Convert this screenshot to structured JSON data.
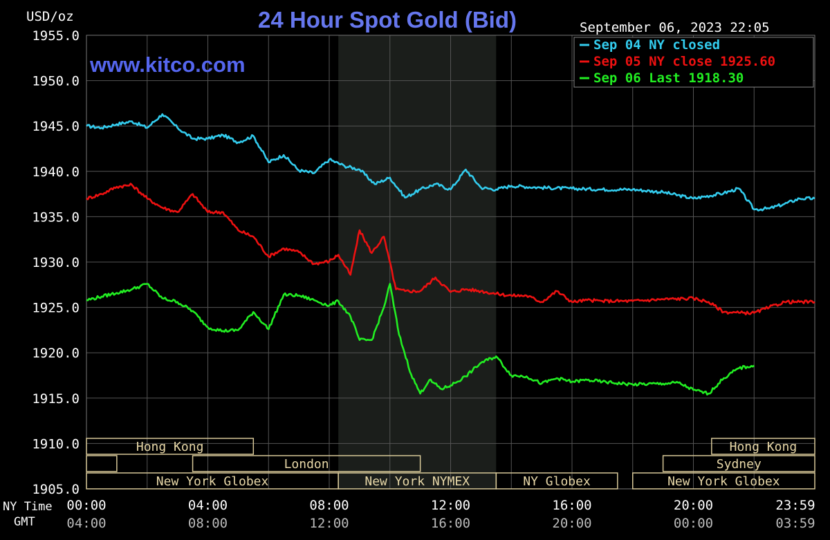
{
  "chart_data": {
    "type": "line",
    "title": "24 Hour Spot Gold (Bid)",
    "ylabel": "USD/oz",
    "watermark": "www.kitco.com",
    "timestamp": "September 06, 2023 22:05",
    "ylim": [
      1905,
      1955
    ],
    "y_ticks": [
      "1955.0",
      "1950.0",
      "1945.0",
      "1940.0",
      "1935.0",
      "1930.0",
      "1925.0",
      "1920.0",
      "1915.0",
      "1910.0",
      "1905.0"
    ],
    "x_row_labels": [
      "NY Time",
      "GMT"
    ],
    "x_ticks_ny": [
      "00:00",
      "04:00",
      "08:00",
      "12:00",
      "16:00",
      "20:00",
      "23:59"
    ],
    "x_ticks_gmt": [
      "04:00",
      "08:00",
      "12:00",
      "16:00",
      "20:00",
      "00:00",
      "03:59"
    ],
    "grid": true,
    "legend_position": "top-right",
    "series": [
      {
        "name": "Sep 04 NY closed",
        "color": "#33ccee",
        "x": [
          0,
          0.5,
          1,
          1.5,
          2,
          2.5,
          3,
          3.5,
          4,
          4.5,
          5,
          5.5,
          6,
          6.5,
          7,
          7.5,
          8,
          8.5,
          9,
          9.5,
          10,
          10.5,
          11,
          11.5,
          12,
          12.5,
          13,
          13.5,
          14,
          15,
          16,
          17,
          18,
          19,
          20,
          21,
          21.5,
          22,
          22.5,
          23,
          23.5,
          24
        ],
        "values": [
          1945,
          1944.8,
          1945.2,
          1945.5,
          1944.8,
          1946.3,
          1944.8,
          1943.6,
          1943.6,
          1944,
          1943.2,
          1943.9,
          1941,
          1941.8,
          1940.1,
          1939.8,
          1941.3,
          1940.6,
          1940.2,
          1938.6,
          1939.3,
          1937.1,
          1938,
          1938.6,
          1938,
          1940.2,
          1938.2,
          1938,
          1938.4,
          1938.2,
          1938.1,
          1938,
          1938,
          1937.7,
          1937,
          1937.6,
          1938.1,
          1935.8,
          1935.9,
          1936.4,
          1937,
          1937
        ]
      },
      {
        "name": "Sep 05 NY close 1925.60",
        "color": "#ee1111",
        "x": [
          0,
          0.5,
          1,
          1.5,
          2,
          2.5,
          3,
          3.5,
          4,
          4.5,
          5,
          5.5,
          6,
          6.5,
          7,
          7.5,
          8,
          8.3,
          8.7,
          9,
          9.4,
          9.8,
          10.2,
          10.5,
          11,
          11.5,
          12,
          12.5,
          13,
          13.5,
          14,
          14.5,
          15,
          15.5,
          16,
          16.5,
          17,
          18,
          19,
          20,
          20.5,
          21,
          21.5,
          22,
          22.5,
          23,
          23.5,
          24
        ],
        "values": [
          1937,
          1937.5,
          1938.3,
          1938.5,
          1937,
          1936,
          1935.5,
          1937.5,
          1935.5,
          1935.5,
          1933.5,
          1932.8,
          1930.6,
          1931.5,
          1931.1,
          1929.8,
          1930.1,
          1930.8,
          1928.6,
          1933.5,
          1931,
          1932.8,
          1927,
          1926.8,
          1926.8,
          1928.3,
          1926.7,
          1927,
          1926.8,
          1926.5,
          1926.3,
          1926.3,
          1925.6,
          1926.8,
          1925.6,
          1925.8,
          1925.7,
          1925.7,
          1925.9,
          1926,
          1925.6,
          1924.5,
          1924.4,
          1924.4,
          1925,
          1925.6,
          1925.6,
          1925.6
        ]
      },
      {
        "name": "Sep 06 Last 1918.30",
        "color": "#22ee22",
        "x": [
          0,
          0.5,
          1,
          1.5,
          2,
          2.5,
          3,
          3.5,
          4,
          4.5,
          5,
          5.5,
          6,
          6.5,
          7,
          7.5,
          8,
          8.3,
          8.7,
          9,
          9.4,
          9.8,
          10,
          10.3,
          10.7,
          11,
          11.3,
          11.7,
          12,
          12.5,
          13,
          13.5,
          14,
          14.5,
          15,
          15.5,
          16,
          16.5,
          17,
          18,
          19,
          19.5,
          20,
          20.5,
          21,
          21.5,
          22
        ],
        "values": [
          1925.8,
          1926.2,
          1926.6,
          1927,
          1927.6,
          1926,
          1925.6,
          1924.6,
          1922.8,
          1922.4,
          1922.5,
          1924.5,
          1922.6,
          1926.4,
          1926.3,
          1925.8,
          1925.2,
          1925.7,
          1924,
          1921.4,
          1921.4,
          1925,
          1927.6,
          1922,
          1917.6,
          1915.5,
          1917,
          1916,
          1916.4,
          1917.4,
          1918.9,
          1919.6,
          1917.5,
          1917.4,
          1916.6,
          1917.2,
          1916.8,
          1917,
          1916.8,
          1916.5,
          1916.6,
          1916.7,
          1915.9,
          1915.5,
          1917.2,
          1918.3,
          1918.6
        ]
      }
    ],
    "shaded_region": {
      "start": 8.3,
      "end": 13.5
    },
    "sessions": [
      {
        "label": "Hong Kong",
        "row": 1,
        "start": 0,
        "end": 5.5
      },
      {
        "label": "Hong Kong",
        "row": 1,
        "start": 20.6,
        "end": 24
      },
      {
        "label": "",
        "row": 2,
        "start": 0,
        "end": 1
      },
      {
        "label": "London",
        "row": 2,
        "start": 3.5,
        "end": 11
      },
      {
        "label": "Sydney",
        "row": 2,
        "start": 19,
        "end": 24
      },
      {
        "label": "New York Globex",
        "row": 3,
        "start": 0,
        "end": 8.3
      },
      {
        "label": "New York NYMEX",
        "row": 3,
        "start": 8.3,
        "end": 13.5
      },
      {
        "label": "NY Globex",
        "row": 3,
        "start": 13.5,
        "end": 17.5
      },
      {
        "label": "New York Globex",
        "row": 3,
        "start": 18,
        "end": 24
      }
    ],
    "colors": {
      "title": "#6677ee",
      "watermark": "#5566ee",
      "grid": "#555555",
      "axis_text": "#ffffff",
      "gmt_text": "#bbbbbb",
      "shade": "#1b1e1b",
      "session_border": "#d8c898",
      "session_text": "#e8d8a8"
    }
  }
}
